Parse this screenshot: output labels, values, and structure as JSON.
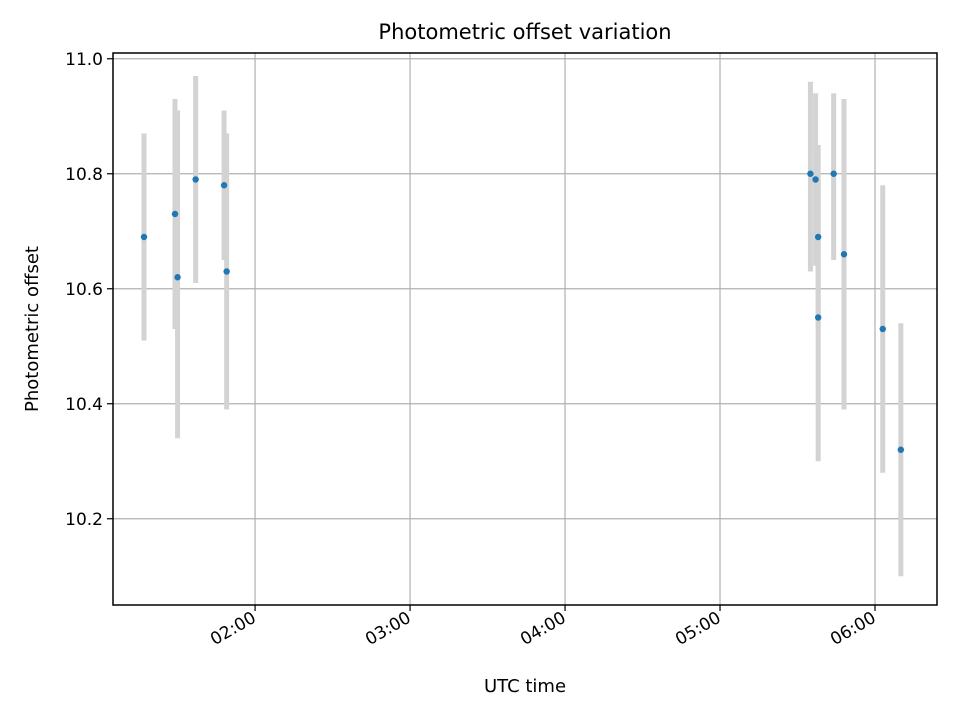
{
  "chart_data": {
    "type": "scatter",
    "title": "Photometric offset variation",
    "xlabel": "UTC time",
    "ylabel": "Photometric offset",
    "x_is_time": true,
    "xlim": [
      "01:05",
      "06:24"
    ],
    "ylim": [
      10.05,
      11.01
    ],
    "x_ticks": [
      "02:00",
      "03:00",
      "04:00",
      "05:00",
      "06:00"
    ],
    "y_ticks": [
      "10.2",
      "10.4",
      "10.6",
      "10.8",
      "11.0"
    ],
    "grid": true,
    "marker_color": "#1f77b4",
    "errorbar_color": "#d3d3d3",
    "points": [
      {
        "x": "01:17",
        "y": 10.69,
        "low": 10.51,
        "high": 10.87
      },
      {
        "x": "01:29",
        "y": 10.73,
        "low": 10.53,
        "high": 10.93
      },
      {
        "x": "01:30",
        "y": 10.62,
        "low": 10.34,
        "high": 10.91
      },
      {
        "x": "01:37",
        "y": 10.79,
        "low": 10.61,
        "high": 10.97
      },
      {
        "x": "01:48",
        "y": 10.78,
        "low": 10.65,
        "high": 10.91
      },
      {
        "x": "01:49",
        "y": 10.63,
        "low": 10.39,
        "high": 10.87
      },
      {
        "x": "05:35",
        "y": 10.8,
        "low": 10.63,
        "high": 10.96
      },
      {
        "x": "05:37",
        "y": 10.79,
        "low": 10.64,
        "high": 10.94
      },
      {
        "x": "05:38",
        "y": 10.69,
        "low": 10.53,
        "high": 10.85
      },
      {
        "x": "05:38",
        "y": 10.55,
        "low": 10.3,
        "high": 10.79
      },
      {
        "x": "05:44",
        "y": 10.8,
        "low": 10.65,
        "high": 10.94
      },
      {
        "x": "05:48",
        "y": 10.66,
        "low": 10.39,
        "high": 10.93
      },
      {
        "x": "06:03",
        "y": 10.53,
        "low": 10.28,
        "high": 10.78
      },
      {
        "x": "06:10",
        "y": 10.32,
        "low": 10.1,
        "high": 10.54
      }
    ]
  }
}
